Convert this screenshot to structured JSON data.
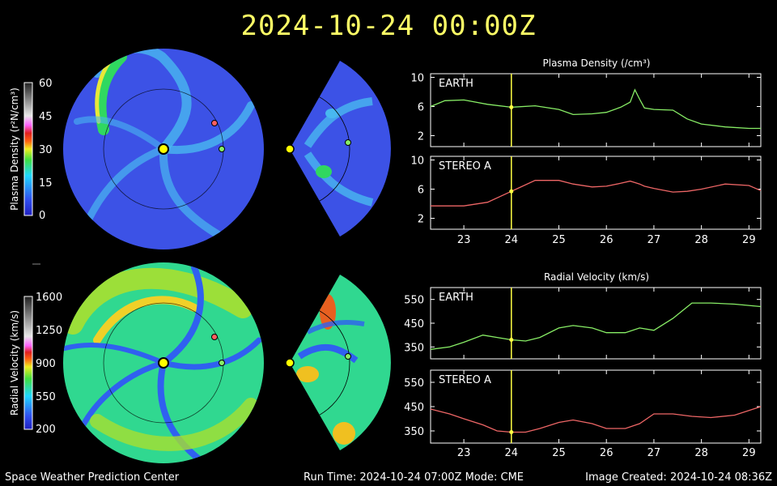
{
  "header": {
    "timestamp": "2024-10-24 00:00Z"
  },
  "footer": {
    "org": "Space Weather Prediction Center",
    "run_time": "Run Time: 2024-10-24 07:00Z  Mode: CME",
    "image_created": "Image Created: 2024-10-24 08:36Z"
  },
  "colors": {
    "title": "#ffff66",
    "earth_trace": "#88ee66",
    "stereo_trace": "#ee6666",
    "now_line": "#ffff44",
    "panel_border": "#ffffff"
  },
  "density_colorbar": {
    "label": "Plasma Density (r²N/cm³)",
    "ticks": [
      "60",
      "45",
      "30",
      "15",
      "0"
    ]
  },
  "velocity_colorbar": {
    "label": "Radial Velocity (km/s)",
    "ticks": [
      "1600",
      "1250",
      "900",
      "550",
      "200"
    ]
  },
  "chart_data": [
    {
      "type": "line",
      "title": "Plasma Density (/cm³)",
      "x": [
        22.3,
        22.6,
        23.0,
        23.5,
        24.0,
        24.5,
        25.0,
        25.3,
        25.7,
        26.0,
        26.3,
        26.5,
        26.6,
        26.7,
        26.8,
        27.0,
        27.4,
        27.7,
        28.0,
        28.5,
        29.0,
        29.25
      ],
      "now_x": 24.0,
      "panels": [
        {
          "name": "EARTH",
          "ylim": [
            0.5,
            10.5
          ],
          "yticks": [
            2,
            6,
            10
          ],
          "values": [
            6.0,
            6.8,
            6.9,
            6.3,
            5.9,
            6.1,
            5.6,
            4.9,
            5.0,
            5.2,
            5.9,
            6.6,
            8.3,
            7.0,
            5.8,
            5.6,
            5.5,
            4.3,
            3.6,
            3.2,
            3.0,
            3.0
          ]
        },
        {
          "name": "STEREO A",
          "ylim": [
            0.5,
            10.5
          ],
          "yticks": [
            2,
            6,
            10
          ],
          "values": [
            3.7,
            3.7,
            3.7,
            4.2,
            5.7,
            7.2,
            7.2,
            6.7,
            6.3,
            6.4,
            6.8,
            7.1,
            6.9,
            6.7,
            6.4,
            6.1,
            5.6,
            5.7,
            6.0,
            6.7,
            6.5,
            5.8
          ]
        }
      ],
      "xticks": [
        23,
        24,
        25,
        26,
        27,
        28,
        29
      ]
    },
    {
      "type": "line",
      "title": "Radial Velocity (km/s)",
      "x": [
        22.3,
        22.7,
        23.0,
        23.4,
        23.7,
        24.0,
        24.3,
        24.6,
        25.0,
        25.3,
        25.7,
        26.0,
        26.4,
        26.7,
        27.0,
        27.4,
        27.8,
        28.2,
        28.7,
        29.25
      ],
      "now_x": 24.0,
      "panels": [
        {
          "name": "EARTH",
          "ylim": [
            300,
            600
          ],
          "yticks": [
            350,
            450,
            550
          ],
          "values": [
            340,
            350,
            370,
            400,
            390,
            380,
            375,
            390,
            430,
            440,
            430,
            410,
            410,
            430,
            420,
            470,
            535,
            535,
            530,
            520
          ]
        },
        {
          "name": "STEREO A",
          "ylim": [
            300,
            600
          ],
          "yticks": [
            350,
            450,
            550
          ],
          "values": [
            440,
            420,
            400,
            375,
            350,
            345,
            345,
            360,
            385,
            395,
            380,
            360,
            360,
            380,
            420,
            420,
            410,
            405,
            415,
            450
          ]
        }
      ],
      "xticks": [
        23,
        24,
        25,
        26,
        27,
        28,
        29
      ]
    }
  ]
}
